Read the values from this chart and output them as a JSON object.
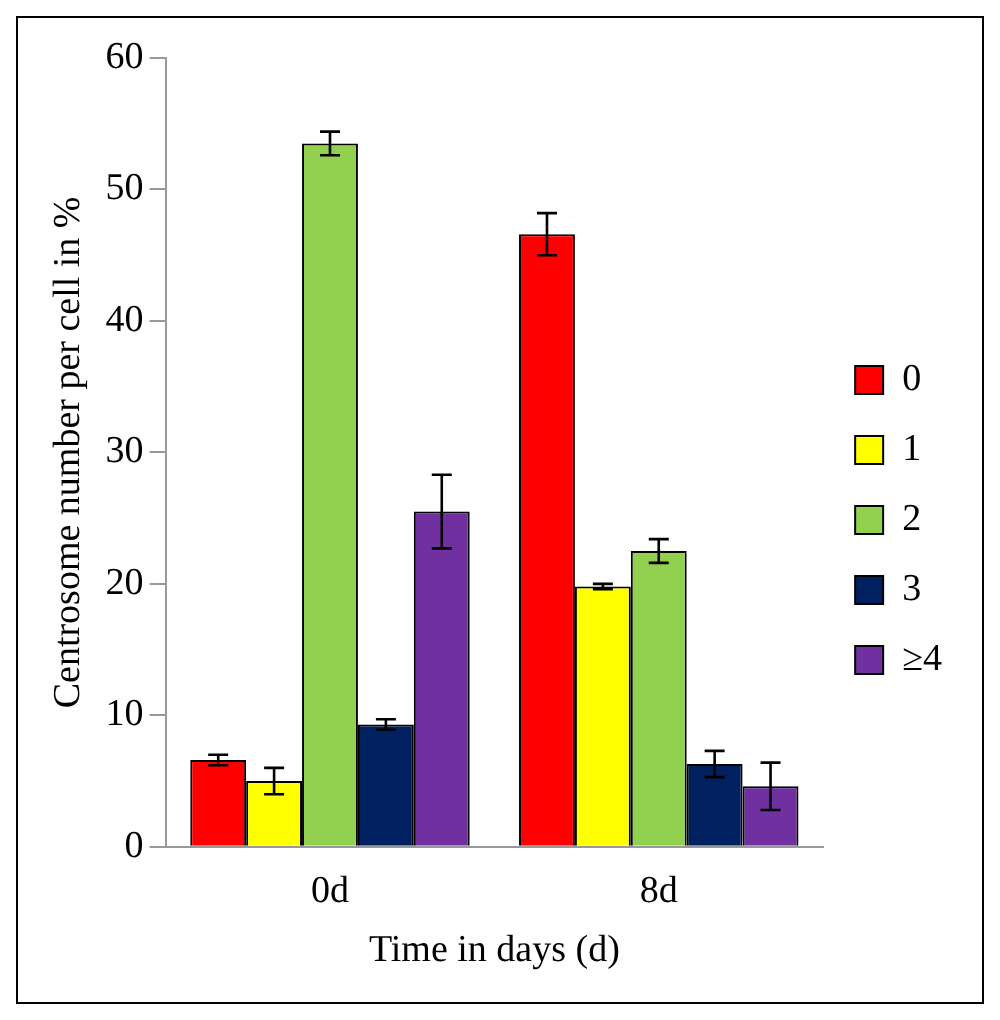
{
  "chart_data": {
    "type": "bar",
    "xlabel": "Time in days (d)",
    "ylabel": "Centrosome number per cell in %",
    "categories": [
      "0d",
      "8d"
    ],
    "series": [
      {
        "name": "0",
        "color": "#ff0000",
        "values": [
          6.6,
          46.6
        ],
        "errors": [
          0.4,
          1.6
        ]
      },
      {
        "name": "1",
        "color": "#ffff00",
        "values": [
          5.0,
          19.8
        ],
        "errors": [
          1.0,
          0.2
        ]
      },
      {
        "name": "2",
        "color": "#92d050",
        "values": [
          53.5,
          22.5
        ],
        "errors": [
          0.9,
          0.9
        ]
      },
      {
        "name": "3",
        "color": "#002060",
        "values": [
          9.3,
          6.3
        ],
        "errors": [
          0.4,
          1.0
        ]
      },
      {
        "name": "≥4",
        "color": "#7030a0",
        "values": [
          25.5,
          4.6
        ],
        "errors": [
          2.8,
          1.8
        ]
      }
    ],
    "ylim": [
      0,
      60
    ],
    "yticks": [
      0,
      10,
      20,
      30,
      40,
      50,
      60
    ],
    "grid": false,
    "legend": "right"
  }
}
